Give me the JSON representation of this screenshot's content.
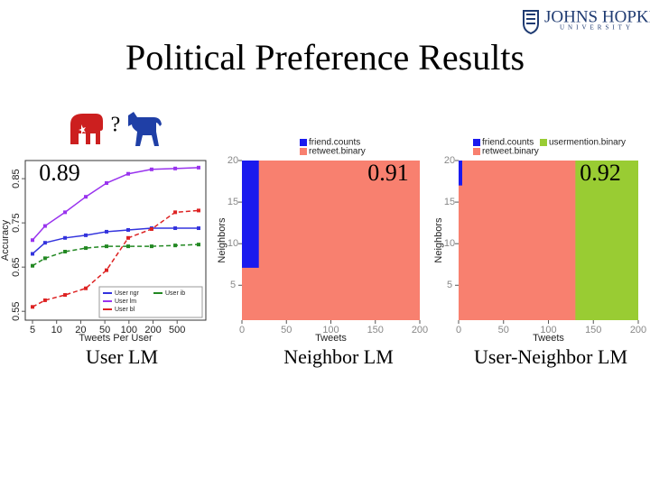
{
  "logo": {
    "name": "JOHNS HOPKINS",
    "sub": "UNIVERSITY"
  },
  "title": "Political Preference Results",
  "question": "?",
  "chart_data": [
    {
      "type": "line",
      "score": "0.89",
      "caption": "User LM",
      "xlabel": "Tweets Per User",
      "ylabel": "Accuracy",
      "x": [
        1,
        1.52,
        2.35,
        3.21,
        4.07,
        4.97,
        5.94,
        6.92,
        7.89
      ],
      "xlim": [
        0.7,
        8.19
      ],
      "xticks": [
        {
          "value": 1,
          "label": "5"
        },
        {
          "value": 2,
          "label": "10"
        },
        {
          "value": 3,
          "label": "20"
        },
        {
          "value": 4,
          "label": "50"
        },
        {
          "value": 5,
          "label": "100"
        },
        {
          "value": 6,
          "label": "200"
        },
        {
          "value": 7,
          "label": "500"
        }
      ],
      "ylim": [
        0.53,
        0.891
      ],
      "yticks": [
        0.55,
        0.65,
        0.75,
        0.85
      ],
      "series": [
        {
          "name": "User ngr",
          "color": "#3333dd",
          "values": [
            0.68,
            0.705,
            0.716,
            0.722,
            0.73,
            0.734,
            0.738,
            0.738,
            0.738
          ]
        },
        {
          "name": "User lm",
          "color": "#9933ee",
          "values": [
            0.711,
            0.743,
            0.774,
            0.809,
            0.84,
            0.861,
            0.871,
            0.873,
            0.875
          ]
        },
        {
          "name": "User bl",
          "color": "#dd2222",
          "values": [
            0.56,
            0.575,
            0.587,
            0.602,
            0.643,
            0.716,
            0.736,
            0.774,
            0.778
          ]
        },
        {
          "name": "User ib",
          "color": "#228822",
          "values": [
            0.653,
            0.67,
            0.685,
            0.693,
            0.697,
            0.697,
            0.697,
            0.699,
            0.701
          ]
        }
      ]
    },
    {
      "type": "tile",
      "score": "0.91",
      "caption": "Neighbor LM",
      "xlabel": "Tweets",
      "ylabel": "Neighbors",
      "xlim": [
        0,
        200
      ],
      "xticks": [
        0,
        50,
        100,
        150,
        200
      ],
      "ylim": [
        0.8,
        20
      ],
      "yticks": [
        5,
        10,
        15,
        20
      ],
      "series": [
        {
          "name": "friend.counts",
          "color": "#1a1aee",
          "rects": [
            [
              0,
              19,
              7.1,
              20
            ]
          ]
        },
        {
          "name": "retweet.binary",
          "color": "#f8806f",
          "rects": [
            [
              0,
              200,
              0.8,
              20
            ]
          ]
        }
      ]
    },
    {
      "type": "tile",
      "score": "0.92",
      "caption": "User-Neighbor LM",
      "xlabel": "Tweets",
      "ylabel": "Neighbors",
      "xlim": [
        0,
        200
      ],
      "xticks": [
        0,
        50,
        100,
        150,
        200
      ],
      "ylim": [
        0.8,
        20
      ],
      "yticks": [
        5,
        10,
        15,
        20
      ],
      "series": [
        {
          "name": "friend.counts",
          "color": "#1a1aee",
          "rects": [
            [
              0,
              4,
              17,
              20
            ]
          ]
        },
        {
          "name": "usermention.binary",
          "color": "#99cc33",
          "rects": [
            [
              130,
              200,
              0.8,
              20
            ]
          ]
        },
        {
          "name": "retweet.binary",
          "color": "#f8806f",
          "rects": [
            [
              0,
              200,
              0.8,
              20
            ]
          ]
        }
      ]
    }
  ]
}
